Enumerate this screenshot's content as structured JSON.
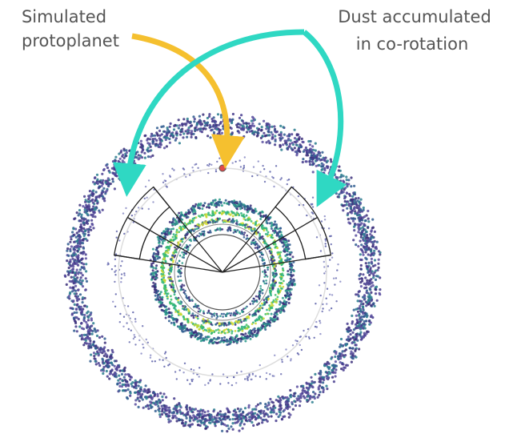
{
  "labels": {
    "protoplanet": [
      "Simulated",
      "protoplanet"
    ],
    "dust": [
      "Dust accumulated",
      "in co-rotation"
    ]
  }
}
